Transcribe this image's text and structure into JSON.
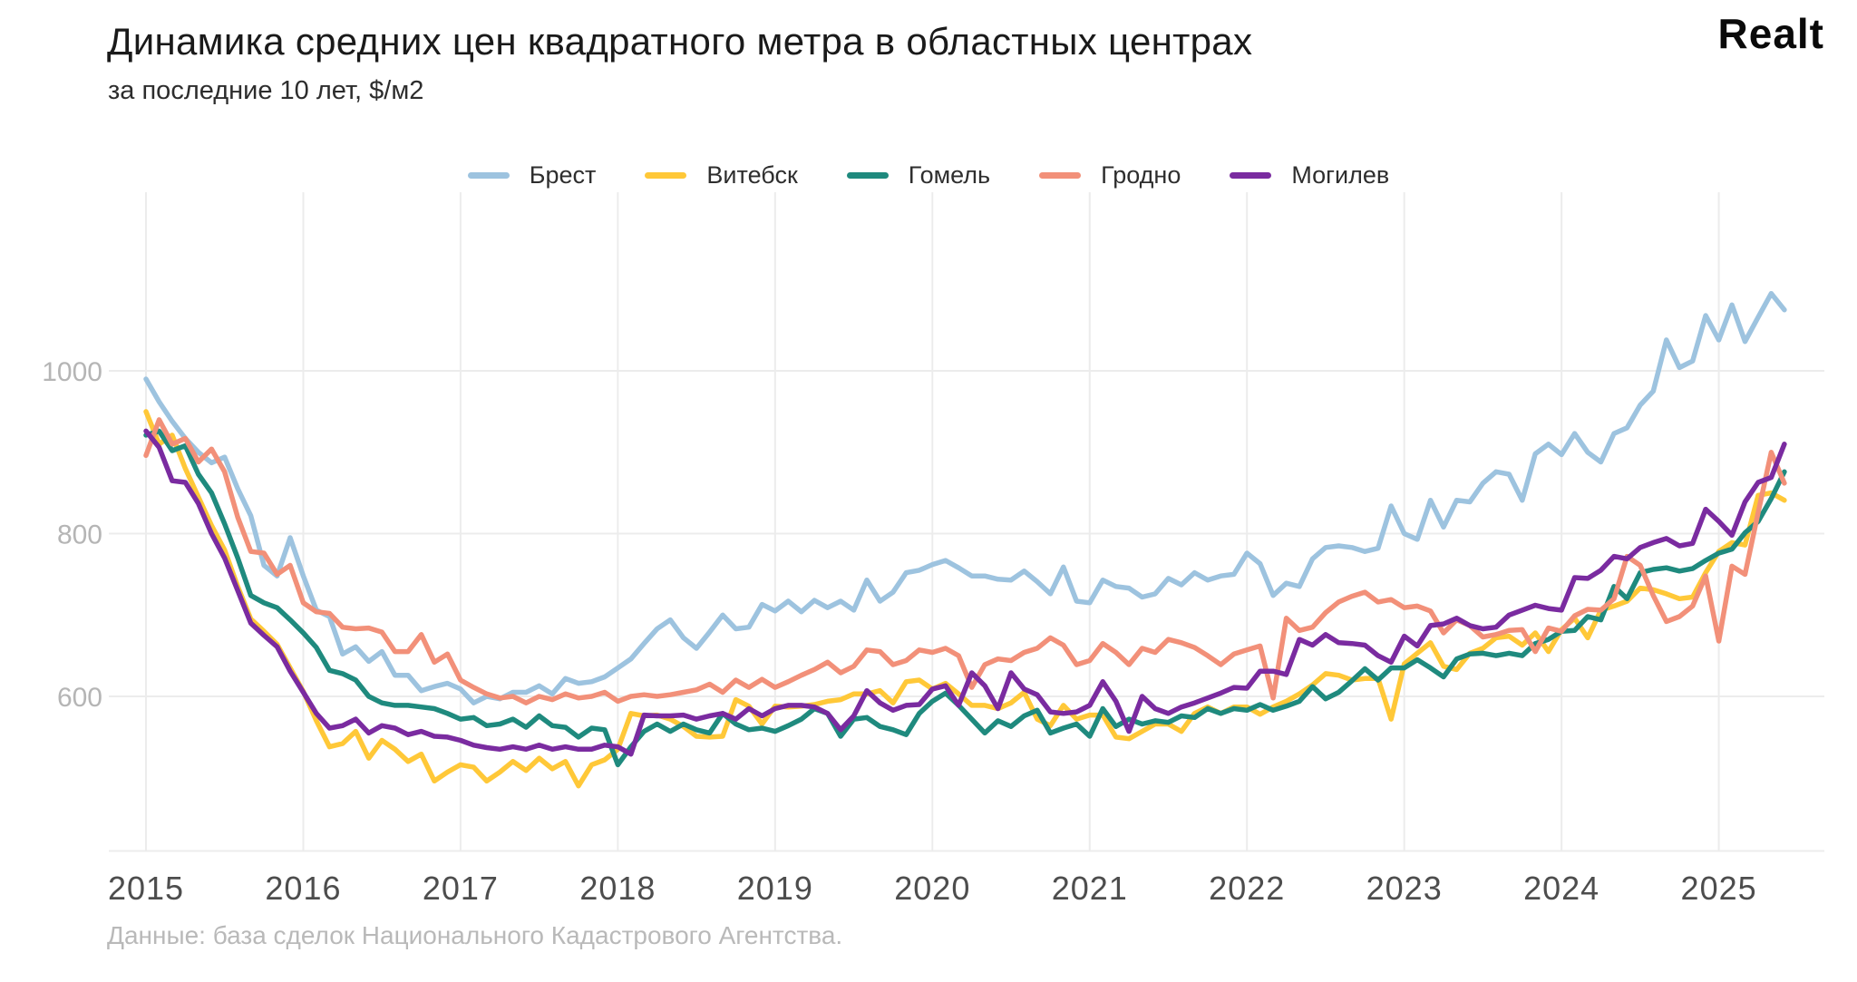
{
  "header": {
    "logo_text": "Realt"
  },
  "chart_data": {
    "type": "line",
    "title": "Динамика средних цен квадратного метра в областных центрах",
    "subtitle": "за последние 10 лет, $/м2",
    "source_note": "Данные: база сделок Национального Кадастрового Агентства.",
    "xlabel": "",
    "ylabel": "$/м2",
    "grid": true,
    "legend_position": "top-center",
    "x_unit": "month",
    "x_start": "2015-01",
    "x_end": "2025-06",
    "x_tick_labels": [
      "2015",
      "2016",
      "2017",
      "2018",
      "2019",
      "2020",
      "2021",
      "2022",
      "2023",
      "2024",
      "2025"
    ],
    "y_tick_values": [
      1000,
      800,
      600
    ],
    "ylim": [
      440,
      1120
    ],
    "series": [
      {
        "name": "Брест",
        "key": "brest",
        "color": "#9DC3DF",
        "values": [
          990,
          962,
          938,
          917,
          900,
          887,
          894,
          855,
          822,
          761,
          748,
          795,
          748,
          706,
          698,
          652,
          661,
          643,
          655,
          626,
          626,
          607,
          612,
          616,
          609,
          592,
          600,
          597,
          605,
          605,
          613,
          603,
          622,
          616,
          618,
          624,
          635,
          646,
          665,
          683,
          694,
          672,
          659,
          679,
          700,
          683,
          685,
          713,
          705,
          717,
          704,
          718,
          709,
          717,
          706,
          743,
          717,
          728,
          752,
          755,
          762,
          767,
          758,
          748,
          748,
          744,
          743,
          754,
          741,
          726,
          759,
          717,
          715,
          743,
          735,
          733,
          722,
          726,
          745,
          737,
          752,
          743,
          748,
          750,
          776,
          763,
          724,
          739,
          735,
          769,
          783,
          785,
          783,
          778,
          782,
          834,
          800,
          793,
          841,
          808,
          841,
          839,
          862,
          876,
          873,
          841,
          898,
          910,
          897,
          923,
          900,
          888,
          923,
          930,
          958,
          975,
          1038,
          1004,
          1012,
          1068,
          1038,
          1081,
          1036,
          1066,
          1095,
          1075
        ]
      },
      {
        "name": "Витебск",
        "key": "vitebsk",
        "color": "#FFC838",
        "values": [
          950,
          910,
          921,
          880,
          845,
          810,
          780,
          735,
          695,
          680,
          664,
          635,
          606,
          570,
          538,
          542,
          557,
          524,
          546,
          535,
          520,
          529,
          496,
          507,
          516,
          513,
          496,
          507,
          520,
          509,
          524,
          511,
          520,
          490,
          516,
          522,
          535,
          579,
          576,
          577,
          572,
          563,
          551,
          550,
          551,
          596,
          588,
          566,
          588,
          587,
          588,
          590,
          594,
          596,
          603,
          603,
          607,
          592,
          618,
          620,
          609,
          616,
          603,
          589,
          589,
          585,
          592,
          605,
          572,
          564,
          589,
          572,
          577,
          577,
          550,
          548,
          557,
          566,
          566,
          557,
          579,
          587,
          579,
          587,
          587,
          578,
          587,
          594,
          603,
          614,
          628,
          626,
          620,
          622,
          622,
          572,
          640,
          653,
          666,
          637,
          633,
          653,
          659,
          672,
          674,
          663,
          678,
          655,
          682,
          696,
          672,
          706,
          711,
          717,
          733,
          731,
          726,
          720,
          722,
          752,
          778,
          789,
          786,
          847,
          850,
          841
        ]
      },
      {
        "name": "Гомель",
        "key": "gomel",
        "color": "#1F8A7E",
        "values": [
          921,
          926,
          902,
          908,
          873,
          850,
          812,
          770,
          724,
          715,
          709,
          694,
          678,
          660,
          632,
          628,
          620,
          600,
          592,
          589,
          589,
          587,
          585,
          579,
          572,
          574,
          564,
          566,
          572,
          562,
          576,
          564,
          562,
          550,
          561,
          559,
          516,
          538,
          557,
          566,
          557,
          566,
          559,
          555,
          579,
          566,
          559,
          561,
          557,
          564,
          572,
          585,
          579,
          551,
          572,
          574,
          563,
          559,
          553,
          579,
          594,
          604,
          589,
          572,
          555,
          570,
          563,
          576,
          583,
          555,
          561,
          566,
          551,
          585,
          563,
          572,
          566,
          570,
          568,
          576,
          574,
          585,
          579,
          585,
          583,
          590,
          583,
          588,
          594,
          612,
          597,
          605,
          619,
          634,
          620,
          635,
          635,
          645,
          635,
          624,
          646,
          652,
          653,
          650,
          653,
          650,
          665,
          670,
          680,
          681,
          698,
          694,
          735,
          720,
          752,
          756,
          758,
          754,
          757,
          767,
          776,
          781,
          801,
          815,
          843,
          876
        ]
      },
      {
        "name": "Гродно",
        "key": "grodno",
        "color": "#F29079",
        "values": [
          896,
          940,
          910,
          917,
          888,
          904,
          876,
          820,
          778,
          776,
          750,
          761,
          715,
          704,
          702,
          685,
          683,
          684,
          679,
          655,
          655,
          676,
          642,
          652,
          620,
          611,
          603,
          598,
          600,
          592,
          600,
          596,
          603,
          598,
          600,
          605,
          594,
          600,
          602,
          600,
          602,
          605,
          608,
          615,
          605,
          620,
          611,
          621,
          611,
          618,
          626,
          633,
          642,
          629,
          637,
          657,
          655,
          639,
          644,
          657,
          654,
          659,
          650,
          611,
          639,
          646,
          644,
          654,
          659,
          672,
          663,
          639,
          644,
          665,
          654,
          639,
          659,
          654,
          670,
          666,
          660,
          650,
          639,
          652,
          657,
          662,
          598,
          696,
          681,
          685,
          703,
          716,
          723,
          728,
          716,
          719,
          709,
          711,
          705,
          678,
          694,
          687,
          673,
          676,
          681,
          682,
          655,
          684,
          680,
          699,
          707,
          706,
          720,
          772,
          761,
          724,
          692,
          698,
          711,
          748,
          668,
          760,
          750,
          826,
          900,
          862
        ]
      },
      {
        "name": "Могилев",
        "key": "mogilev",
        "color": "#7A2BA0",
        "values": [
          926,
          906,
          865,
          863,
          837,
          800,
          770,
          730,
          690,
          675,
          661,
          631,
          605,
          579,
          561,
          564,
          572,
          555,
          564,
          561,
          553,
          557,
          551,
          550,
          546,
          540,
          537,
          535,
          538,
          535,
          540,
          535,
          538,
          535,
          535,
          540,
          538,
          529,
          577,
          576,
          576,
          577,
          572,
          576,
          579,
          572,
          585,
          576,
          585,
          589,
          589,
          587,
          579,
          559,
          576,
          607,
          592,
          583,
          589,
          590,
          609,
          613,
          589,
          629,
          613,
          585,
          629,
          609,
          602,
          581,
          579,
          581,
          589,
          618,
          594,
          557,
          600,
          585,
          579,
          587,
          592,
          598,
          604,
          611,
          610,
          631,
          631,
          627,
          670,
          663,
          676,
          666,
          665,
          663,
          650,
          642,
          674,
          662,
          687,
          689,
          696,
          687,
          683,
          685,
          700,
          706,
          712,
          708,
          706,
          746,
          745,
          755,
          772,
          769,
          783,
          789,
          794,
          785,
          788,
          830,
          815,
          798,
          839,
          863,
          869,
          910
        ]
      }
    ]
  }
}
